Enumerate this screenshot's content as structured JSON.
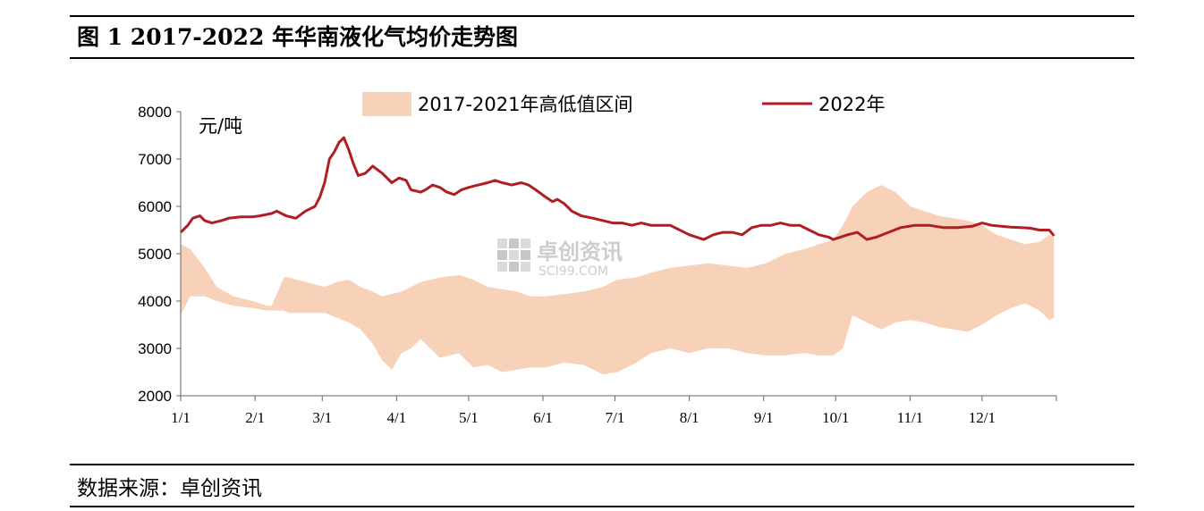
{
  "figure": {
    "title": "图 1  2017-2022 年华南液化气均价走势图",
    "source": "数据来源：卓创资讯"
  },
  "watermark": {
    "name_cn": "卓创资讯",
    "name_en": "SCI99.COM"
  },
  "chart_data": {
    "type": "line",
    "unit_label": "元/吨",
    "xlabel": "",
    "ylabel": "",
    "xlim_days": [
      0,
      365
    ],
    "ylim": [
      2000,
      8000
    ],
    "y_ticks": [
      2000,
      3000,
      4000,
      5000,
      6000,
      7000,
      8000
    ],
    "x_ticks": [
      {
        "label": "1/1",
        "day": 0
      },
      {
        "label": "2/1",
        "day": 31
      },
      {
        "label": "3/1",
        "day": 59
      },
      {
        "label": "4/1",
        "day": 90
      },
      {
        "label": "5/1",
        "day": 120
      },
      {
        "label": "6/1",
        "day": 151
      },
      {
        "label": "7/1",
        "day": 181
      },
      {
        "label": "8/1",
        "day": 212
      },
      {
        "label": "9/1",
        "day": 243
      },
      {
        "label": "10/1",
        "day": 273
      },
      {
        "label": "11/1",
        "day": 304
      },
      {
        "label": "12/1",
        "day": 334
      }
    ],
    "grid": false,
    "legend_position": "top",
    "colors": {
      "band": "#f8d2b8",
      "line": "#b01e23"
    },
    "series": [
      {
        "name": "2017-2021年高低值区间",
        "kind": "range_band",
        "x": [
          0,
          4,
          10,
          15,
          22,
          30,
          36,
          38,
          43,
          45,
          52,
          60,
          65,
          70,
          75,
          80,
          84,
          88,
          92,
          96,
          100,
          108,
          116,
          122,
          128,
          134,
          140,
          146,
          152,
          160,
          168,
          176,
          182,
          190,
          196,
          204,
          212,
          220,
          228,
          236,
          244,
          252,
          260,
          266,
          272,
          276,
          280,
          286,
          292,
          298,
          304,
          310,
          316,
          322,
          328,
          334,
          340,
          346,
          352,
          358,
          362,
          364
        ],
        "high": [
          5200,
          5100,
          4700,
          4300,
          4100,
          4000,
          3900,
          3900,
          4500,
          4500,
          4400,
          4300,
          4400,
          4450,
          4300,
          4200,
          4100,
          4150,
          4200,
          4300,
          4400,
          4500,
          4550,
          4450,
          4300,
          4250,
          4200,
          4100,
          4100,
          4150,
          4200,
          4300,
          4450,
          4500,
          4600,
          4700,
          4750,
          4800,
          4750,
          4700,
          4800,
          5000,
          5100,
          5200,
          5300,
          5600,
          6000,
          6300,
          6450,
          6300,
          6000,
          5900,
          5800,
          5750,
          5700,
          5600,
          5400,
          5300,
          5200,
          5250,
          5400,
          5350
        ],
        "low": [
          3700,
          4100,
          4100,
          4000,
          3900,
          3850,
          3800,
          3800,
          3800,
          3750,
          3750,
          3750,
          3650,
          3550,
          3400,
          3100,
          2750,
          2550,
          2900,
          3000,
          3200,
          2800,
          2900,
          2600,
          2650,
          2500,
          2550,
          2600,
          2600,
          2700,
          2650,
          2450,
          2500,
          2700,
          2900,
          3000,
          2900,
          3000,
          3000,
          2900,
          2850,
          2850,
          2900,
          2850,
          2850,
          3000,
          3700,
          3550,
          3400,
          3550,
          3600,
          3550,
          3450,
          3400,
          3350,
          3500,
          3700,
          3850,
          3950,
          3800,
          3600,
          3650
        ]
      },
      {
        "name": "2022年",
        "kind": "line",
        "x": [
          0,
          3,
          5,
          8,
          10,
          13,
          17,
          20,
          25,
          30,
          33,
          38,
          40,
          44,
          48,
          52,
          56,
          58,
          60,
          62,
          64,
          66,
          68,
          70,
          72,
          74,
          77,
          80,
          84,
          88,
          91,
          94,
          96,
          100,
          102,
          105,
          108,
          111,
          114,
          117,
          120,
          124,
          128,
          131,
          134,
          138,
          142,
          145,
          148,
          152,
          155,
          157,
          160,
          163,
          167,
          172,
          176,
          180,
          184,
          188,
          192,
          196,
          200,
          204,
          208,
          212,
          215,
          218,
          222,
          226,
          230,
          234,
          238,
          242,
          246,
          250,
          254,
          258,
          262,
          266,
          270,
          272,
          275,
          278,
          282,
          286,
          290,
          295,
          300,
          306,
          312,
          318,
          324,
          330,
          334,
          338,
          342,
          346,
          350,
          354,
          358,
          362,
          364
        ],
        "values": [
          5450,
          5600,
          5750,
          5800,
          5700,
          5650,
          5700,
          5750,
          5780,
          5780,
          5800,
          5850,
          5900,
          5800,
          5750,
          5900,
          6000,
          6200,
          6500,
          7000,
          7150,
          7350,
          7450,
          7200,
          6900,
          6650,
          6700,
          6850,
          6700,
          6500,
          6600,
          6550,
          6350,
          6300,
          6350,
          6450,
          6400,
          6300,
          6250,
          6350,
          6400,
          6450,
          6500,
          6550,
          6500,
          6450,
          6500,
          6450,
          6350,
          6200,
          6100,
          6150,
          6050,
          5900,
          5800,
          5750,
          5700,
          5650,
          5650,
          5600,
          5650,
          5600,
          5600,
          5600,
          5500,
          5400,
          5350,
          5300,
          5400,
          5450,
          5450,
          5400,
          5550,
          5600,
          5600,
          5650,
          5600,
          5600,
          5500,
          5400,
          5350,
          5300,
          5350,
          5400,
          5450,
          5300,
          5350,
          5450,
          5550,
          5600,
          5600,
          5550,
          5550,
          5580,
          5650,
          5600,
          5580,
          5560,
          5550,
          5540,
          5500,
          5500,
          5380
        ]
      }
    ]
  }
}
